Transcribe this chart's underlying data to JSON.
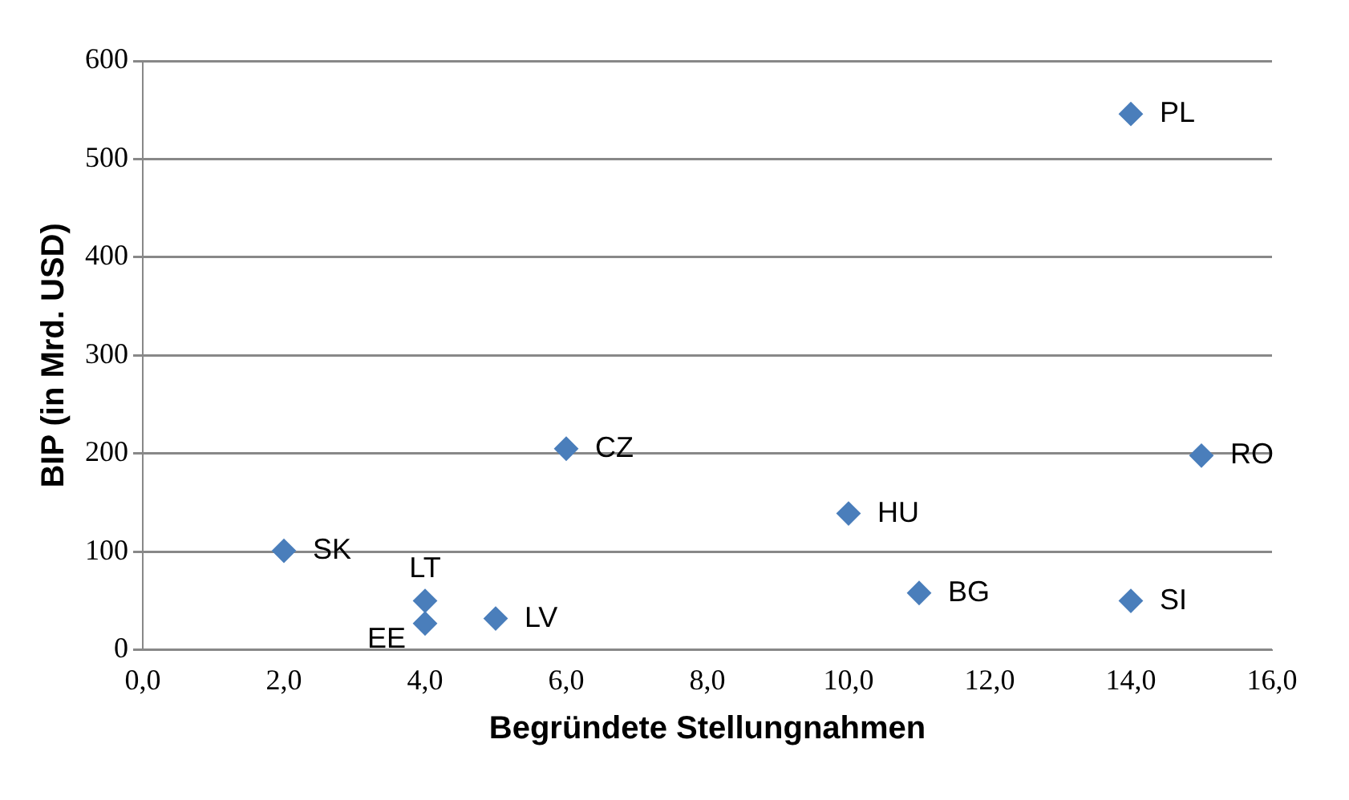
{
  "chart_data": {
    "type": "scatter",
    "xlabel": "Begründete Stellungnahmen",
    "ylabel": "BIP (in Mrd. USD)",
    "x": [
      14,
      15,
      6,
      10,
      2,
      11,
      14,
      4,
      5,
      4
    ],
    "values": [
      546,
      198,
      205,
      139,
      101,
      58,
      50,
      50,
      32,
      27
    ],
    "color": "#4a7ebb",
    "marker": "diamond",
    "grid": "y",
    "legend": false,
    "xlim": [
      0,
      16
    ],
    "xticks": [
      {
        "value": 0,
        "label": "0,0"
      },
      {
        "value": 2,
        "label": "2,0"
      },
      {
        "value": 4,
        "label": "4,0"
      },
      {
        "value": 6,
        "label": "6,0"
      },
      {
        "value": 8,
        "label": "8,0"
      },
      {
        "value": 10,
        "label": "10,0"
      },
      {
        "value": 12,
        "label": "12,0"
      },
      {
        "value": 14,
        "label": "14,0"
      },
      {
        "value": 16,
        "label": "16,0"
      }
    ],
    "ylim": [
      0,
      600
    ],
    "yticks": [
      0,
      100,
      200,
      300,
      400,
      500,
      600
    ],
    "annotations": [
      {
        "text": "PL",
        "x": 14,
        "y": 546
      },
      {
        "text": "RO",
        "x": 15,
        "y": 198
      },
      {
        "text": "CZ",
        "x": 6,
        "y": 205
      },
      {
        "text": "HU",
        "x": 10,
        "y": 139
      },
      {
        "text": "SK",
        "x": 2,
        "y": 101
      },
      {
        "text": "BG",
        "x": 11,
        "y": 58
      },
      {
        "text": "SI",
        "x": 14,
        "y": 50
      },
      {
        "text": "LT",
        "x": 4,
        "y": 50
      },
      {
        "text": "LV",
        "x": 5,
        "y": 32
      },
      {
        "text": "EE",
        "x": 4,
        "y": 27
      }
    ]
  }
}
